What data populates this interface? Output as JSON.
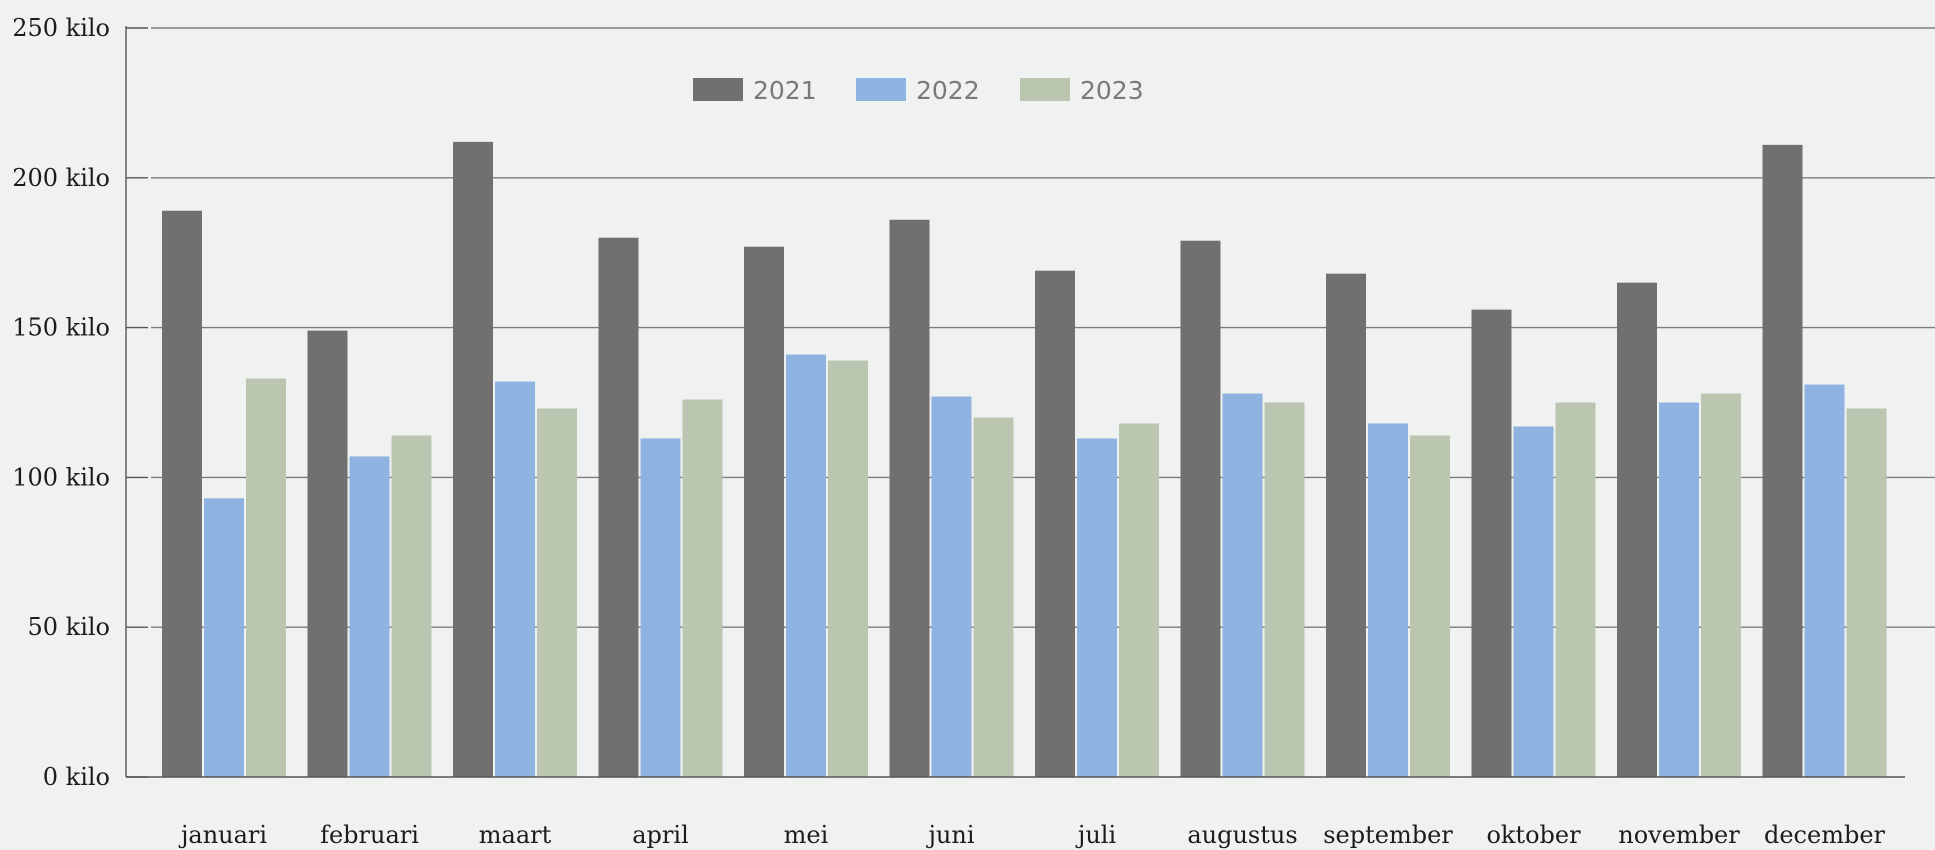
{
  "chart_data": {
    "type": "bar",
    "categories": [
      "januari",
      "februari",
      "maart",
      "april",
      "mei",
      "juni",
      "juli",
      "augustus",
      "september",
      "oktober",
      "november",
      "december"
    ],
    "series": [
      {
        "name": "2021",
        "color": "#707070",
        "values": [
          189,
          149,
          212,
          180,
          177,
          186,
          169,
          179,
          168,
          156,
          165,
          211
        ]
      },
      {
        "name": "2022",
        "color": "#8fb3e0",
        "values": [
          93,
          107,
          132,
          113,
          141,
          127,
          113,
          128,
          118,
          117,
          125,
          131
        ]
      },
      {
        "name": "2023",
        "color": "#bbc6b1",
        "values": [
          133,
          114,
          123,
          126,
          139,
          120,
          118,
          125,
          114,
          125,
          128,
          123
        ]
      }
    ],
    "yticks": [
      "0 kilo",
      "50 kilo",
      "100 kilo",
      "150 kilo",
      "200 kilo",
      "250 kilo"
    ],
    "ytick_values": [
      0,
      50,
      100,
      150,
      200,
      250
    ],
    "ylim": [
      0,
      250
    ],
    "grid": true,
    "legend": "top-center",
    "title": "",
    "xlabel": "",
    "ylabel": ""
  }
}
